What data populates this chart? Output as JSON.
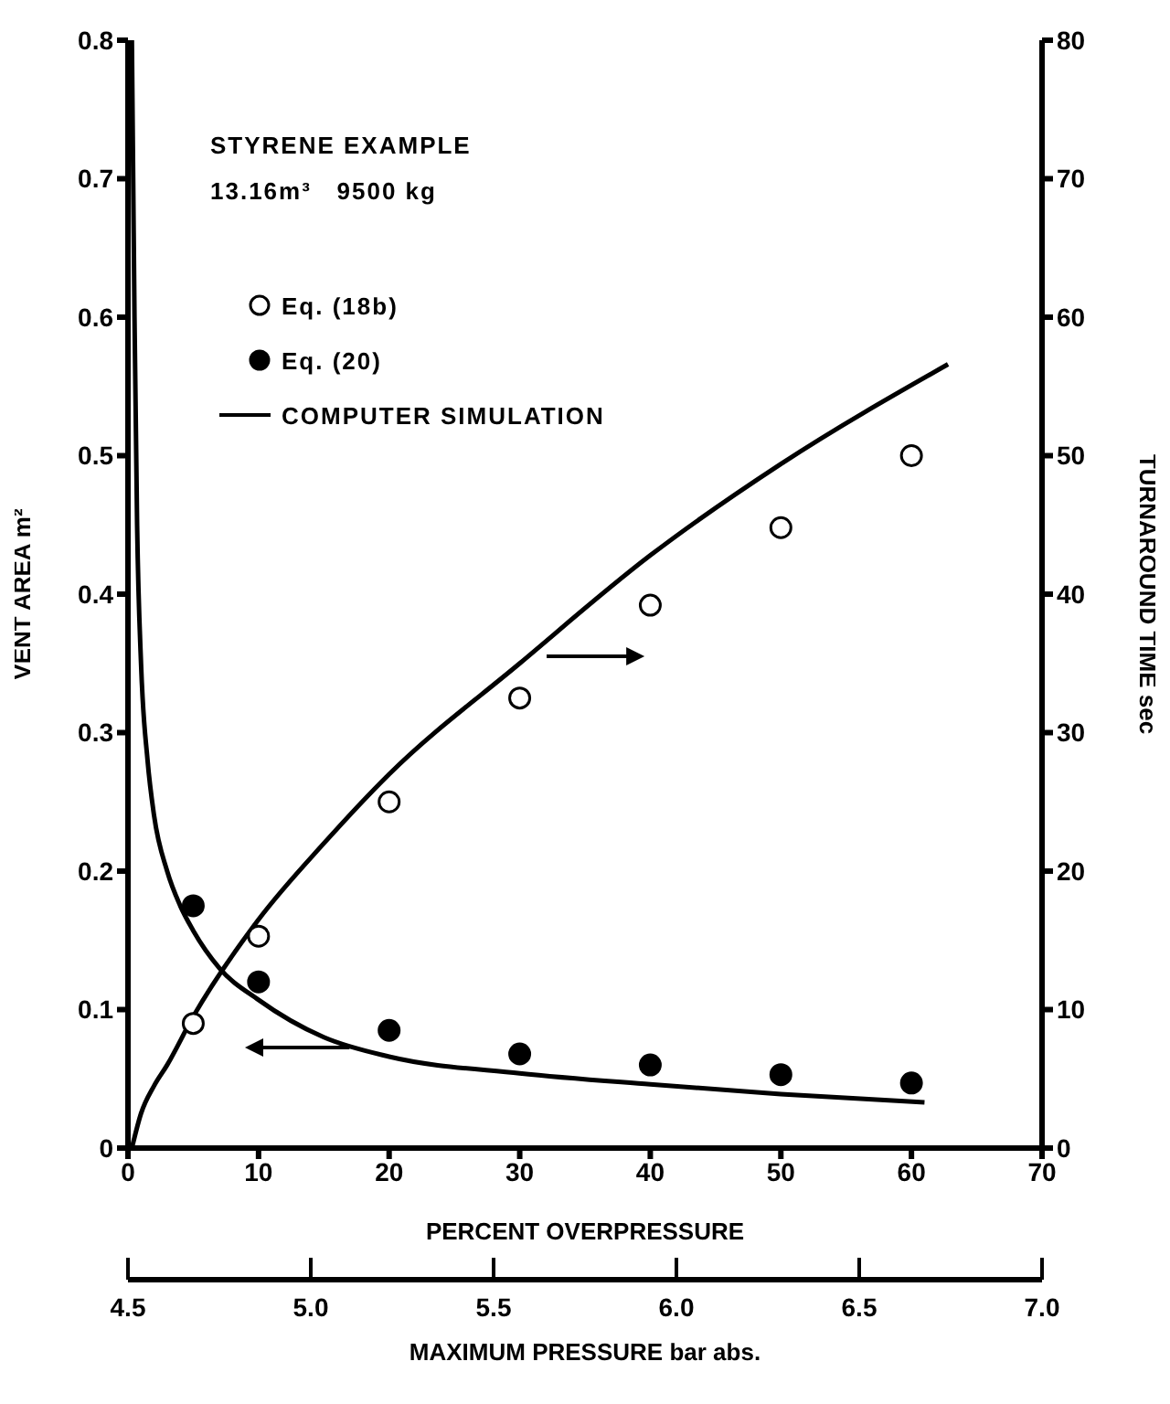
{
  "chart_data": {
    "type": "line",
    "xlabel": "PERCENT OVERPRESSURE",
    "ylabel": "VENT AREA m²",
    "y2label": "TURNAROUND TIME sec",
    "x2label": "MAXIMUM PRESSURE bar abs.",
    "annotations": [
      "STYRENE EXAMPLE",
      "13.16m³   9500 kg"
    ],
    "xlim": [
      0,
      70
    ],
    "xticks": [
      0,
      10,
      20,
      30,
      40,
      50,
      60,
      70
    ],
    "x2lim": [
      4.5,
      7.0
    ],
    "x2ticks": [
      {
        "value": 4.5,
        "label": "4.5"
      },
      {
        "value": 5.0,
        "label": "5.0"
      },
      {
        "value": 5.5,
        "label": "5.5"
      },
      {
        "value": 6.0,
        "label": "6.0"
      },
      {
        "value": 6.5,
        "label": "6.5"
      },
      {
        "value": 7.0,
        "label": "7.0"
      }
    ],
    "ylim": [
      0,
      0.8
    ],
    "yticks": [
      0,
      0.1,
      0.2,
      0.3,
      0.4,
      0.5,
      0.6,
      0.7,
      0.8
    ],
    "y2lim": [
      0,
      80
    ],
    "y2ticks": [
      0,
      10,
      20,
      30,
      40,
      50,
      60,
      70,
      80
    ],
    "legend": "top left",
    "series": [
      {
        "name": "Eq. (18b)",
        "type": "scatter",
        "axis": "y2",
        "color": "#ffffff",
        "marker": "circle",
        "x": [
          5,
          10,
          20,
          30,
          40,
          50,
          60
        ],
        "values": [
          9.0,
          15.3,
          25,
          32.5,
          39.2,
          44.8,
          50
        ]
      },
      {
        "name": "Eq. (20)",
        "type": "scatter",
        "axis": "y",
        "color": "#000000",
        "marker": "circle",
        "x": [
          5,
          10,
          20,
          30,
          40,
          50,
          60
        ],
        "values": [
          0.175,
          0.12,
          0.085,
          0.068,
          0.06,
          0.053,
          0.047
        ]
      },
      {
        "name": "COMPUTER SIMULATION",
        "axis": "y",
        "color": "#000000",
        "marker": "none",
        "x": [
          0.3,
          0.5,
          0.7,
          1.0,
          1.5,
          2,
          3,
          4,
          5,
          7,
          10,
          15,
          20,
          30,
          40,
          50,
          61
        ],
        "values": [
          0.8,
          0.6,
          0.45,
          0.35,
          0.28,
          0.24,
          0.2,
          0.175,
          0.157,
          0.13,
          0.107,
          0.08,
          0.066,
          0.054,
          0.046,
          0.039,
          0.033
        ]
      },
      {
        "axis": "y2",
        "color": "#000000",
        "marker": "none",
        "x": [
          0.3,
          1,
          2,
          3,
          5,
          10,
          15,
          20,
          30,
          40,
          50,
          62.8
        ],
        "values": [
          0,
          2.5,
          4.5,
          6,
          9.5,
          16.5,
          22,
          27,
          35,
          42.8,
          49.4,
          56.6
        ]
      }
    ]
  }
}
